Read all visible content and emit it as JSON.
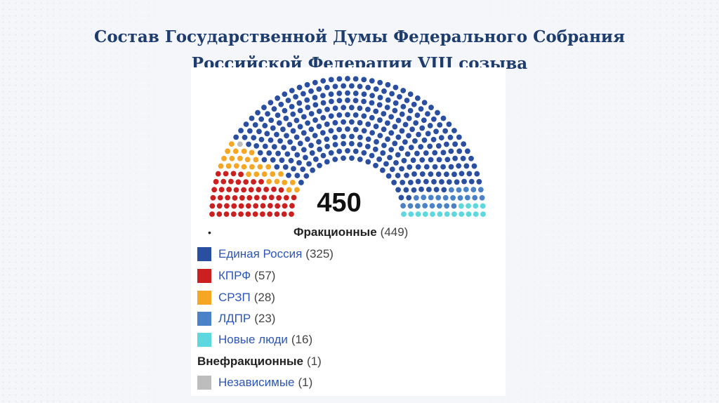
{
  "title": {
    "line1": "Состав Государственной Думы Федерального Собрания",
    "line2": "Российской Федерации VIII созыва"
  },
  "chart_data": {
    "type": "parliament",
    "total_label": "450",
    "total_seats": 450,
    "groups": [
      {
        "name": "Фракционные",
        "count_label": "(449)",
        "seats": 449,
        "bullet": "•"
      },
      {
        "name": "Внефракционные",
        "count_label": "(1)",
        "seats": 1,
        "bullet": ""
      }
    ],
    "parties": [
      {
        "name": "Единая Россия",
        "count_label": "(325)",
        "seats": 325,
        "color": "#2a4fa0"
      },
      {
        "name": "КПРФ",
        "count_label": "(57)",
        "seats": 57,
        "color": "#cc1f1f"
      },
      {
        "name": "СРЗП",
        "count_label": "(28)",
        "seats": 28,
        "color": "#f5a623"
      },
      {
        "name": "ЛДПР",
        "count_label": "(23)",
        "seats": 23,
        "color": "#4a82c8"
      },
      {
        "name": "Новые люди",
        "count_label": "(16)",
        "seats": 16,
        "color": "#5fd7df"
      },
      {
        "name": "Независимые",
        "count_label": "(1)",
        "seats": 1,
        "color": "#bdbdbd"
      }
    ],
    "seat_order": [
      "КПРФ",
      "СРЗП",
      "Независимые",
      "Единая Россия",
      "ЛДПР",
      "Новые люди"
    ]
  }
}
